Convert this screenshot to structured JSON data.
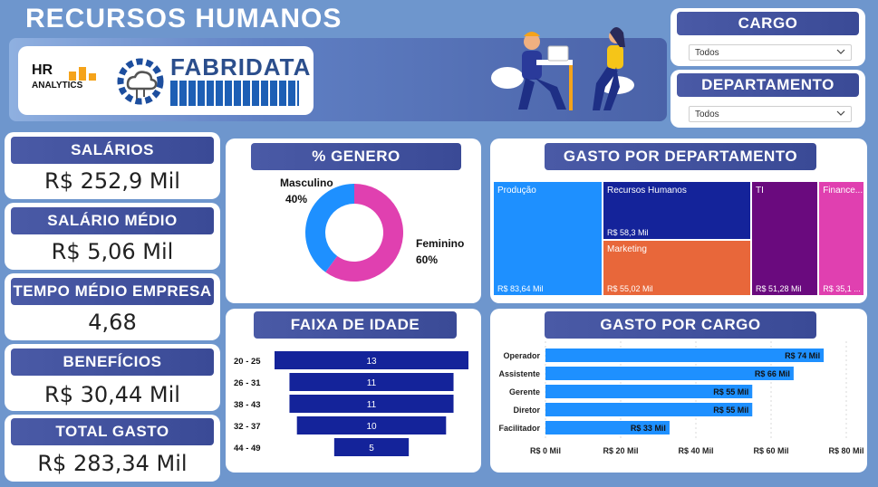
{
  "header": {
    "title": "RECURSOS HUMANOS",
    "logo_hr_line1": "HR",
    "logo_hr_line2": "ANALYTICS",
    "logo_brand": "FABRIDATA"
  },
  "filters": {
    "cargo_label": "CARGO",
    "cargo_value": "Todos",
    "departamento_label": "DEPARTAMENTO",
    "departamento_value": "Todos"
  },
  "kpis": [
    {
      "label": "SALÁRIOS",
      "value": "R$ 252,9 Mil"
    },
    {
      "label": "SALÁRIO MÉDIO",
      "value": "R$ 5,06 Mil"
    },
    {
      "label": "TEMPO MÉDIO EMPRESA",
      "value": "4,68"
    },
    {
      "label": "BENEFÍCIOS",
      "value": "R$ 30,44 Mil"
    },
    {
      "label": "TOTAL GASTO",
      "value": "R$ 283,34 Mil"
    }
  ],
  "colors": {
    "background": "#6e96cd",
    "pill": "#4a5aa6",
    "masculino": "#1e90ff",
    "feminino": "#e040b0",
    "funnel": "#14239a",
    "bar": "#1e90ff"
  },
  "chart_data": [
    {
      "type": "pie",
      "title": "% GENERO",
      "categories": [
        "Masculino",
        "Feminino"
      ],
      "values": [
        40,
        60
      ],
      "labels": [
        "40%",
        "60%"
      ]
    },
    {
      "type": "bar",
      "title": "FAIXA DE IDADE",
      "categories": [
        "20 - 25",
        "26 - 31",
        "38 - 43",
        "32 - 37",
        "44 - 49"
      ],
      "values": [
        13,
        11,
        11,
        10,
        5
      ]
    },
    {
      "type": "heatmap",
      "title": "GASTO POR DEPARTAMENTO",
      "categories": [
        "Produção",
        "Recursos Humanos",
        "Marketing",
        "TI",
        "Finance..."
      ],
      "values": [
        83.64,
        58.3,
        55.02,
        51.28,
        35.1
      ],
      "value_labels": [
        "R$ 83,64 Mil",
        "R$ 58,3 Mil",
        "R$ 55,02 Mil",
        "R$ 51,28 Mil",
        "R$ 35,1 ..."
      ],
      "colors": [
        "#1e90ff",
        "#14239a",
        "#e8673a",
        "#6a0a7e",
        "#e040b0"
      ]
    },
    {
      "type": "bar",
      "title": "GASTO POR CARGO",
      "categories": [
        "Operador",
        "Assistente",
        "Gerente",
        "Diretor",
        "Facilitador"
      ],
      "values": [
        74,
        66,
        55,
        55,
        33
      ],
      "value_labels": [
        "R$ 74 Mil",
        "R$ 66 Mil",
        "R$ 55 Mil",
        "R$ 55 Mil",
        "R$ 33 Mil"
      ],
      "xlim": [
        0,
        80
      ],
      "xticks": [
        0,
        20,
        40,
        60,
        80
      ],
      "xtick_labels": [
        "R$ 0 Mil",
        "R$ 20 Mil",
        "R$ 40 Mil",
        "R$ 60 Mil",
        "R$ 80 Mil"
      ],
      "grid": true
    }
  ]
}
